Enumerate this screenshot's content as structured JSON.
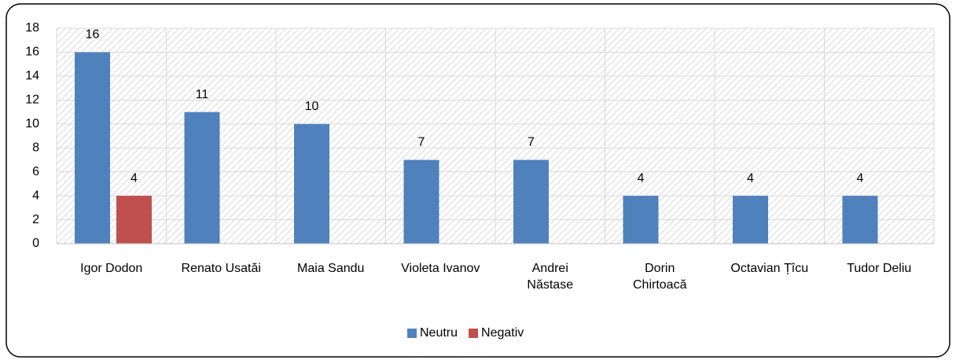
{
  "chart_data": {
    "type": "bar",
    "categories": [
      "Igor Dodon",
      "Renato Usatăi",
      "Maia Sandu",
      "Violeta Ivanov",
      "Andrei\nNăstase",
      "Dorin\nChirtoacă",
      "Octavian Țîcu",
      "Tudor Deliu"
    ],
    "series": [
      {
        "name": "Neutru",
        "color": "#4f81bd",
        "values": [
          16,
          11,
          10,
          7,
          7,
          4,
          4,
          4
        ]
      },
      {
        "name": "Negativ",
        "color": "#c0504d",
        "values": [
          4,
          null,
          null,
          null,
          null,
          null,
          null,
          null
        ]
      }
    ],
    "ylim": [
      0,
      18
    ],
    "yticks": [
      0,
      2,
      4,
      6,
      8,
      10,
      12,
      14,
      16,
      18
    ],
    "grid": true,
    "legend": "bottom"
  }
}
